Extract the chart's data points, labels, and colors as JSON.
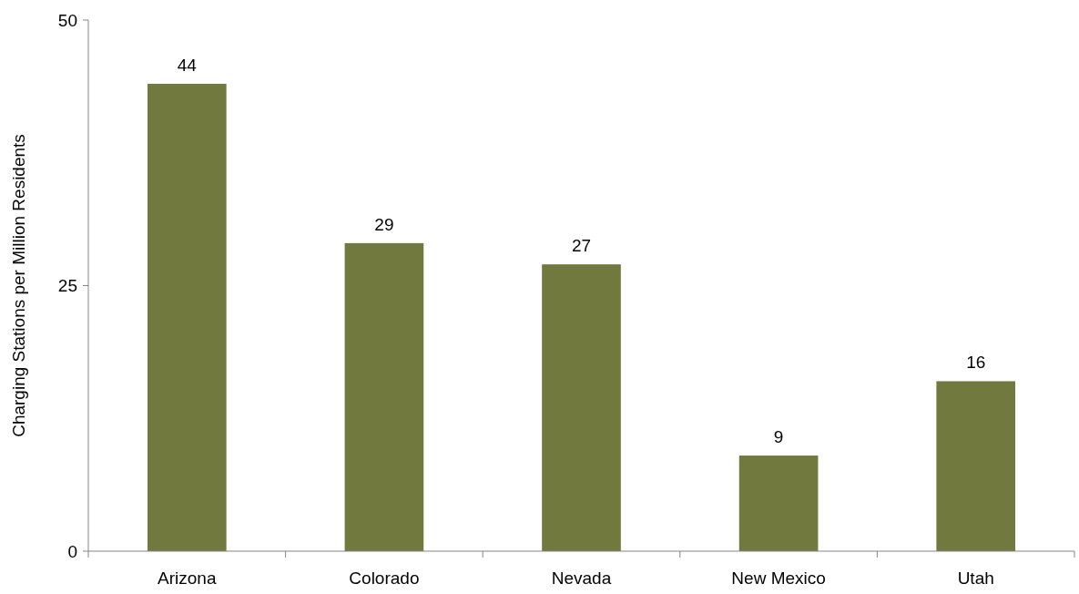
{
  "chart_data": {
    "type": "bar",
    "ylabel": "Charging Stations per Million Residents",
    "categories": [
      "Arizona",
      "Colorado",
      "Nevada",
      "New Mexico",
      "Utah"
    ],
    "values": [
      44,
      29,
      27,
      9,
      16
    ],
    "color": "#71793f",
    "ylim": [
      0,
      50
    ],
    "yticks": [
      0,
      25,
      50
    ],
    "grid": false,
    "data_labels": true
  }
}
